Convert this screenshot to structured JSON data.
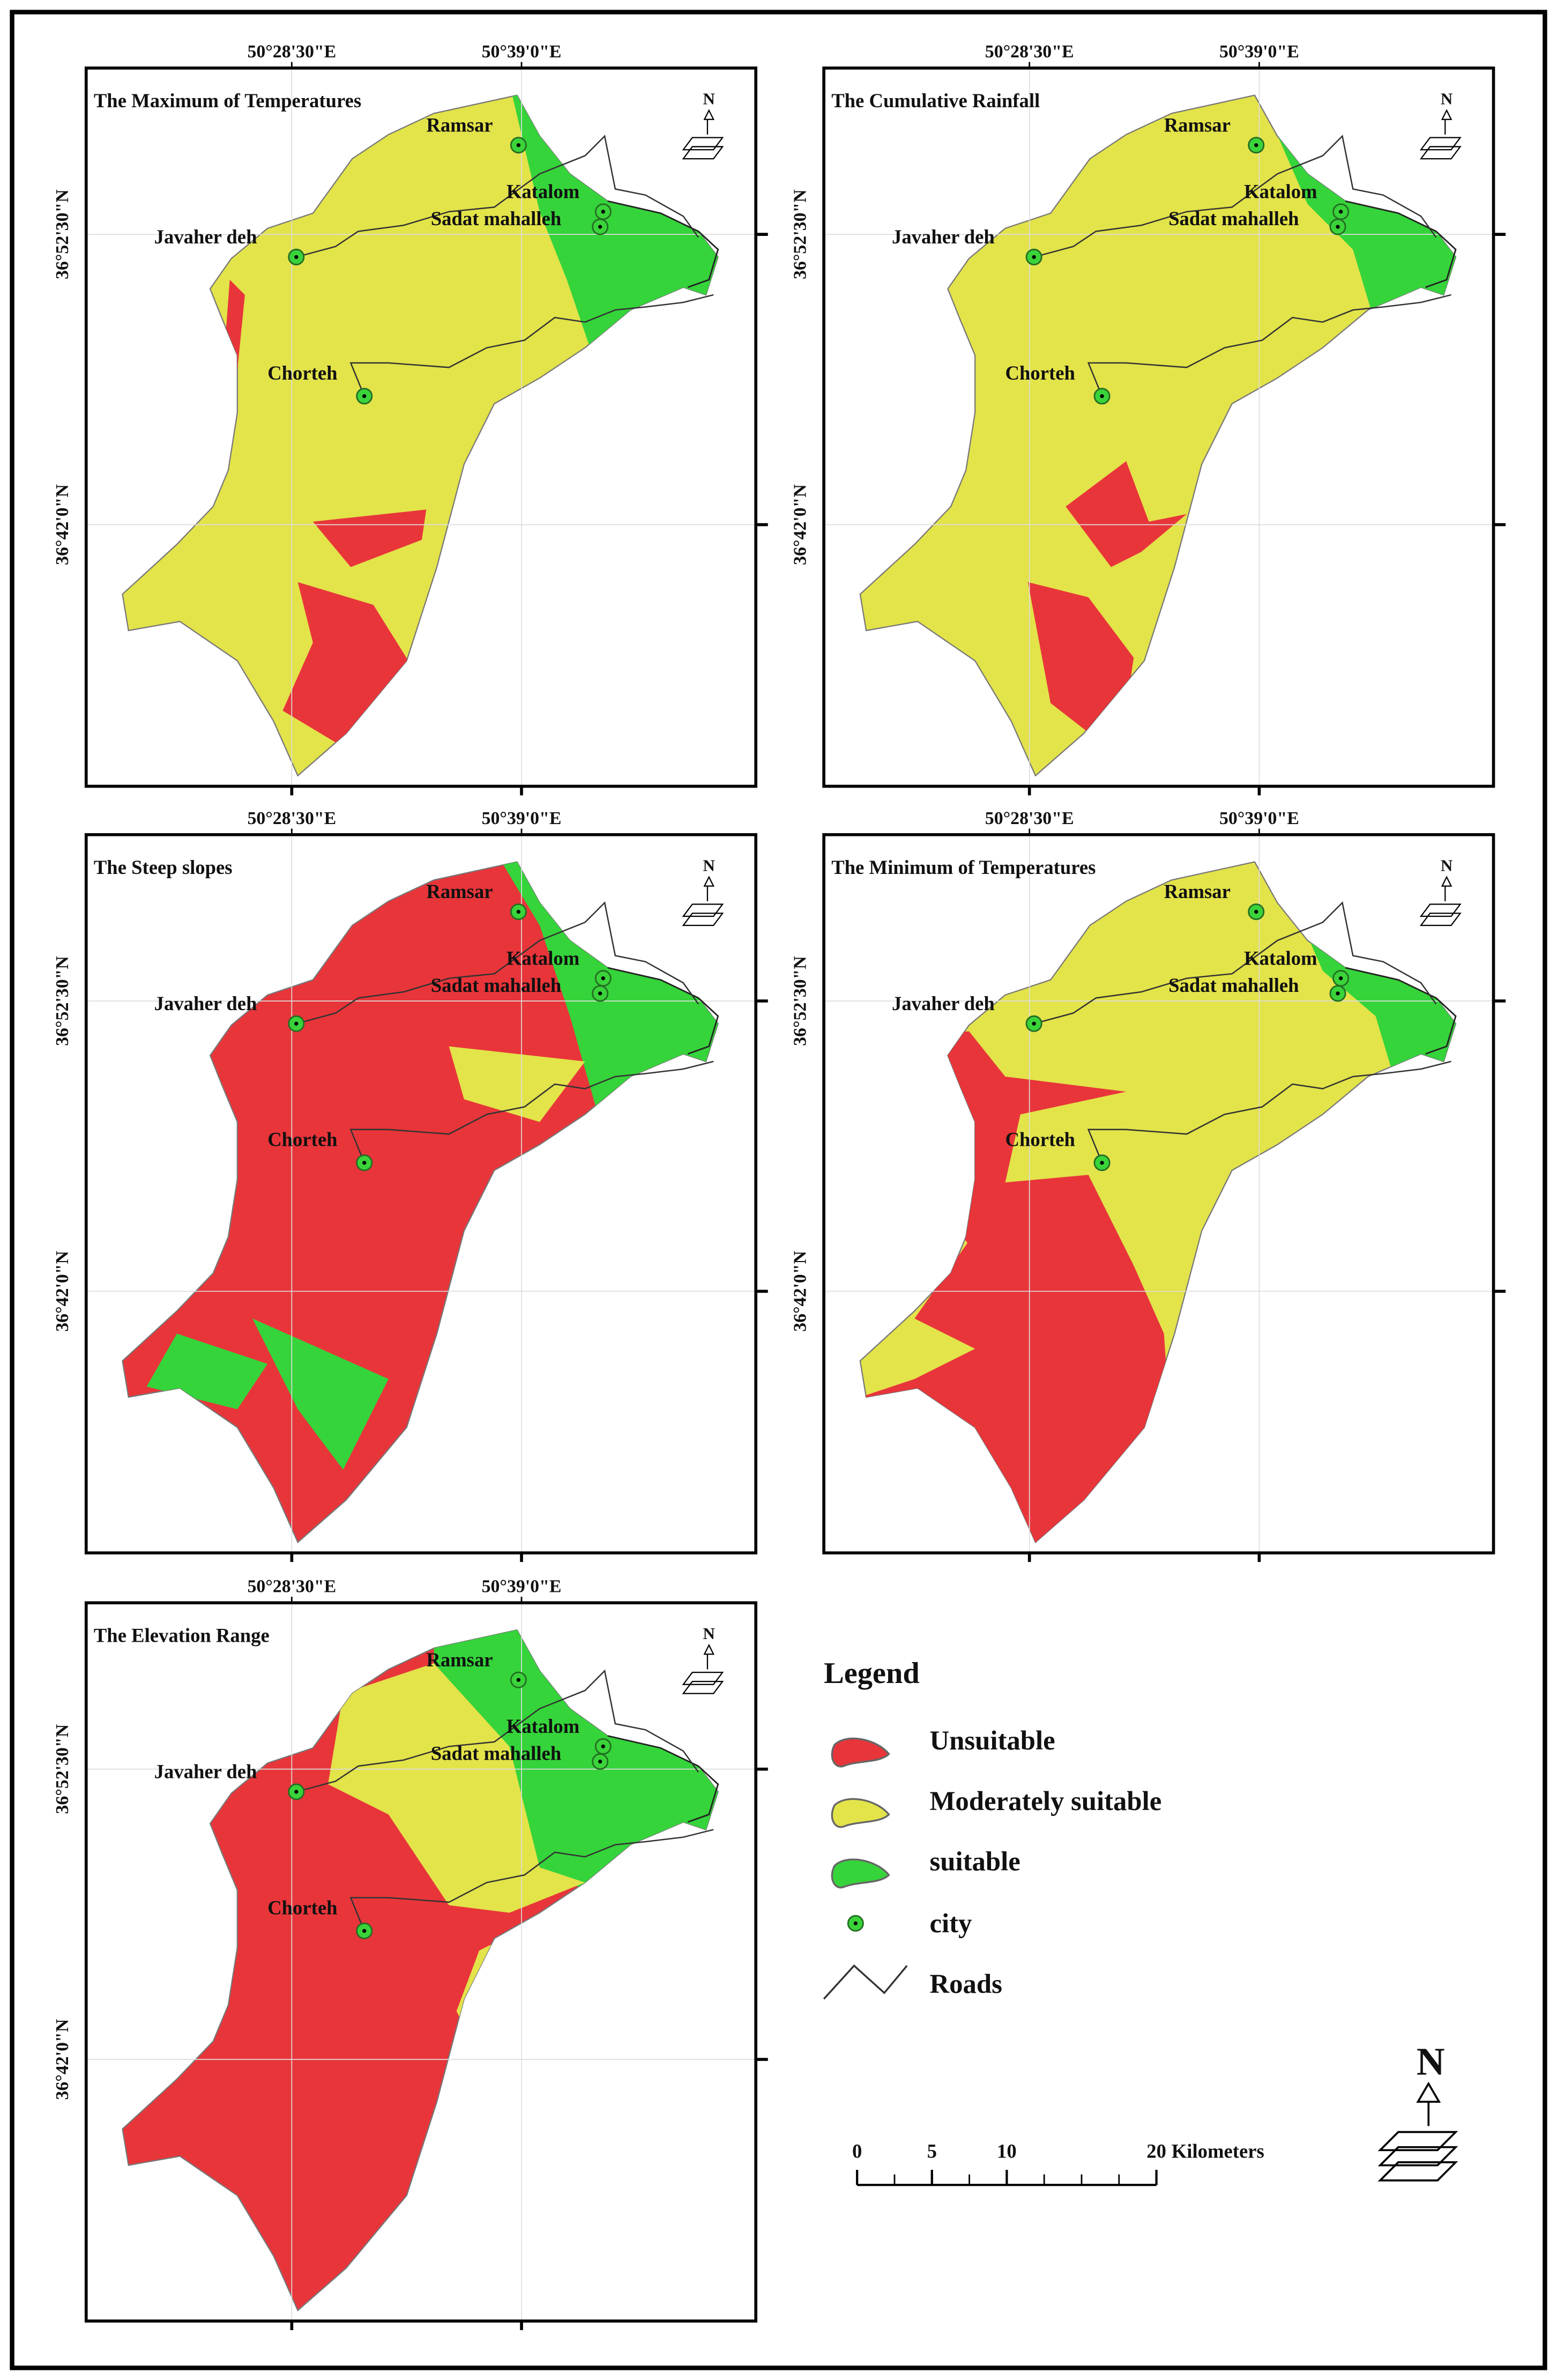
{
  "panels": [
    {
      "title": "The Maximum of Temperatures"
    },
    {
      "title": "The Cumulative Rainfall"
    },
    {
      "title": "The Steep slopes"
    },
    {
      "title": "The Minimum of Temperatures"
    },
    {
      "title": "The Elevation Range"
    }
  ],
  "lon_labels": [
    "50°28'30\"E",
    "50°39'0\"E"
  ],
  "lat_labels": [
    "36°52'30\"N",
    "36°42'0\"N"
  ],
  "cities": [
    "Ramsar",
    "Katalom",
    "Sadat mahalleh",
    "Javaher deh",
    "Chorteh"
  ],
  "legend": {
    "title": "Legend",
    "items": [
      {
        "label": "Unsuitable",
        "color": "#e8353a"
      },
      {
        "label": "Moderately suitable",
        "color": "#e3e34a"
      },
      {
        "label": "suitable",
        "color": "#35d43a"
      },
      {
        "label": "city"
      },
      {
        "label": "Roads"
      }
    ]
  },
  "scale_bar": {
    "ticks": [
      0,
      5,
      10,
      20
    ],
    "unit": "Kilometers"
  },
  "north_label": "N"
}
